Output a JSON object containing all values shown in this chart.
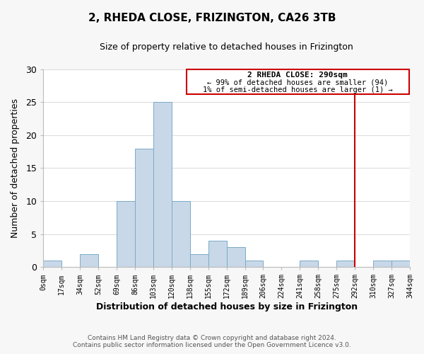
{
  "title": "2, RHEDA CLOSE, FRIZINGTON, CA26 3TB",
  "subtitle": "Size of property relative to detached houses in Frizington",
  "xlabel": "Distribution of detached houses by size in Frizington",
  "ylabel": "Number of detached properties",
  "bin_labels": [
    "0sqm",
    "17sqm",
    "34sqm",
    "52sqm",
    "69sqm",
    "86sqm",
    "103sqm",
    "120sqm",
    "138sqm",
    "155sqm",
    "172sqm",
    "189sqm",
    "206sqm",
    "224sqm",
    "241sqm",
    "258sqm",
    "275sqm",
    "292sqm",
    "310sqm",
    "327sqm",
    "344sqm"
  ],
  "bar_heights": [
    1,
    0,
    2,
    0,
    10,
    18,
    25,
    10,
    2,
    4,
    3,
    1,
    0,
    0,
    1,
    0,
    1,
    0,
    1,
    1
  ],
  "bar_color": "#c8d8e8",
  "bar_edge_color": "#7aaac8",
  "vline_x_bin": 17,
  "vline_color": "#cc0000",
  "ylim": [
    0,
    30
  ],
  "yticks": [
    0,
    5,
    10,
    15,
    20,
    25,
    30
  ],
  "annotation_title": "2 RHEDA CLOSE: 290sqm",
  "annotation_line1": "← 99% of detached houses are smaller (94)",
  "annotation_line2": "1% of semi-detached houses are larger (1) →",
  "annotation_box_color": "#cc0000",
  "footer_line1": "Contains HM Land Registry data © Crown copyright and database right 2024.",
  "footer_line2": "Contains public sector information licensed under the Open Government Licence v3.0.",
  "background_color": "#f7f7f7",
  "plot_background_color": "#ffffff",
  "grid_color": "#dddddd"
}
